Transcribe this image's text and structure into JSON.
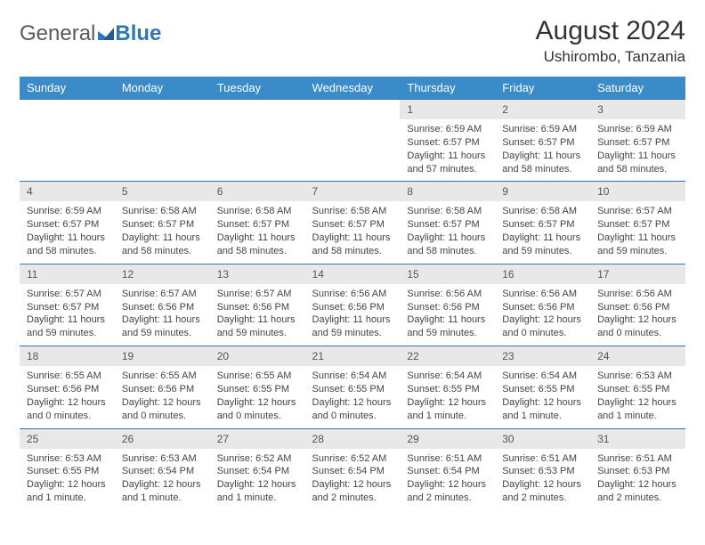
{
  "logo": {
    "general": "General",
    "blue": "Blue"
  },
  "title": "August 2024",
  "location": "Ushirombo, Tanzania",
  "colors": {
    "header_bg": "#3b8bc9",
    "header_fg": "#ffffff",
    "daynum_bg": "#e8e8e8",
    "rule": "#2d77b8",
    "text": "#444444",
    "logo_general": "#5a5a5a",
    "logo_blue": "#2d77b8"
  },
  "weekdays": [
    "Sunday",
    "Monday",
    "Tuesday",
    "Wednesday",
    "Thursday",
    "Friday",
    "Saturday"
  ],
  "weeks": [
    [
      null,
      null,
      null,
      null,
      {
        "n": "1",
        "sr": "Sunrise: 6:59 AM",
        "ss": "Sunset: 6:57 PM",
        "dl": "Daylight: 11 hours and 57 minutes."
      },
      {
        "n": "2",
        "sr": "Sunrise: 6:59 AM",
        "ss": "Sunset: 6:57 PM",
        "dl": "Daylight: 11 hours and 58 minutes."
      },
      {
        "n": "3",
        "sr": "Sunrise: 6:59 AM",
        "ss": "Sunset: 6:57 PM",
        "dl": "Daylight: 11 hours and 58 minutes."
      }
    ],
    [
      {
        "n": "4",
        "sr": "Sunrise: 6:59 AM",
        "ss": "Sunset: 6:57 PM",
        "dl": "Daylight: 11 hours and 58 minutes."
      },
      {
        "n": "5",
        "sr": "Sunrise: 6:58 AM",
        "ss": "Sunset: 6:57 PM",
        "dl": "Daylight: 11 hours and 58 minutes."
      },
      {
        "n": "6",
        "sr": "Sunrise: 6:58 AM",
        "ss": "Sunset: 6:57 PM",
        "dl": "Daylight: 11 hours and 58 minutes."
      },
      {
        "n": "7",
        "sr": "Sunrise: 6:58 AM",
        "ss": "Sunset: 6:57 PM",
        "dl": "Daylight: 11 hours and 58 minutes."
      },
      {
        "n": "8",
        "sr": "Sunrise: 6:58 AM",
        "ss": "Sunset: 6:57 PM",
        "dl": "Daylight: 11 hours and 58 minutes."
      },
      {
        "n": "9",
        "sr": "Sunrise: 6:58 AM",
        "ss": "Sunset: 6:57 PM",
        "dl": "Daylight: 11 hours and 59 minutes."
      },
      {
        "n": "10",
        "sr": "Sunrise: 6:57 AM",
        "ss": "Sunset: 6:57 PM",
        "dl": "Daylight: 11 hours and 59 minutes."
      }
    ],
    [
      {
        "n": "11",
        "sr": "Sunrise: 6:57 AM",
        "ss": "Sunset: 6:57 PM",
        "dl": "Daylight: 11 hours and 59 minutes."
      },
      {
        "n": "12",
        "sr": "Sunrise: 6:57 AM",
        "ss": "Sunset: 6:56 PM",
        "dl": "Daylight: 11 hours and 59 minutes."
      },
      {
        "n": "13",
        "sr": "Sunrise: 6:57 AM",
        "ss": "Sunset: 6:56 PM",
        "dl": "Daylight: 11 hours and 59 minutes."
      },
      {
        "n": "14",
        "sr": "Sunrise: 6:56 AM",
        "ss": "Sunset: 6:56 PM",
        "dl": "Daylight: 11 hours and 59 minutes."
      },
      {
        "n": "15",
        "sr": "Sunrise: 6:56 AM",
        "ss": "Sunset: 6:56 PM",
        "dl": "Daylight: 11 hours and 59 minutes."
      },
      {
        "n": "16",
        "sr": "Sunrise: 6:56 AM",
        "ss": "Sunset: 6:56 PM",
        "dl": "Daylight: 12 hours and 0 minutes."
      },
      {
        "n": "17",
        "sr": "Sunrise: 6:56 AM",
        "ss": "Sunset: 6:56 PM",
        "dl": "Daylight: 12 hours and 0 minutes."
      }
    ],
    [
      {
        "n": "18",
        "sr": "Sunrise: 6:55 AM",
        "ss": "Sunset: 6:56 PM",
        "dl": "Daylight: 12 hours and 0 minutes."
      },
      {
        "n": "19",
        "sr": "Sunrise: 6:55 AM",
        "ss": "Sunset: 6:56 PM",
        "dl": "Daylight: 12 hours and 0 minutes."
      },
      {
        "n": "20",
        "sr": "Sunrise: 6:55 AM",
        "ss": "Sunset: 6:55 PM",
        "dl": "Daylight: 12 hours and 0 minutes."
      },
      {
        "n": "21",
        "sr": "Sunrise: 6:54 AM",
        "ss": "Sunset: 6:55 PM",
        "dl": "Daylight: 12 hours and 0 minutes."
      },
      {
        "n": "22",
        "sr": "Sunrise: 6:54 AM",
        "ss": "Sunset: 6:55 PM",
        "dl": "Daylight: 12 hours and 1 minute."
      },
      {
        "n": "23",
        "sr": "Sunrise: 6:54 AM",
        "ss": "Sunset: 6:55 PM",
        "dl": "Daylight: 12 hours and 1 minute."
      },
      {
        "n": "24",
        "sr": "Sunrise: 6:53 AM",
        "ss": "Sunset: 6:55 PM",
        "dl": "Daylight: 12 hours and 1 minute."
      }
    ],
    [
      {
        "n": "25",
        "sr": "Sunrise: 6:53 AM",
        "ss": "Sunset: 6:55 PM",
        "dl": "Daylight: 12 hours and 1 minute."
      },
      {
        "n": "26",
        "sr": "Sunrise: 6:53 AM",
        "ss": "Sunset: 6:54 PM",
        "dl": "Daylight: 12 hours and 1 minute."
      },
      {
        "n": "27",
        "sr": "Sunrise: 6:52 AM",
        "ss": "Sunset: 6:54 PM",
        "dl": "Daylight: 12 hours and 1 minute."
      },
      {
        "n": "28",
        "sr": "Sunrise: 6:52 AM",
        "ss": "Sunset: 6:54 PM",
        "dl": "Daylight: 12 hours and 2 minutes."
      },
      {
        "n": "29",
        "sr": "Sunrise: 6:51 AM",
        "ss": "Sunset: 6:54 PM",
        "dl": "Daylight: 12 hours and 2 minutes."
      },
      {
        "n": "30",
        "sr": "Sunrise: 6:51 AM",
        "ss": "Sunset: 6:53 PM",
        "dl": "Daylight: 12 hours and 2 minutes."
      },
      {
        "n": "31",
        "sr": "Sunrise: 6:51 AM",
        "ss": "Sunset: 6:53 PM",
        "dl": "Daylight: 12 hours and 2 minutes."
      }
    ]
  ]
}
